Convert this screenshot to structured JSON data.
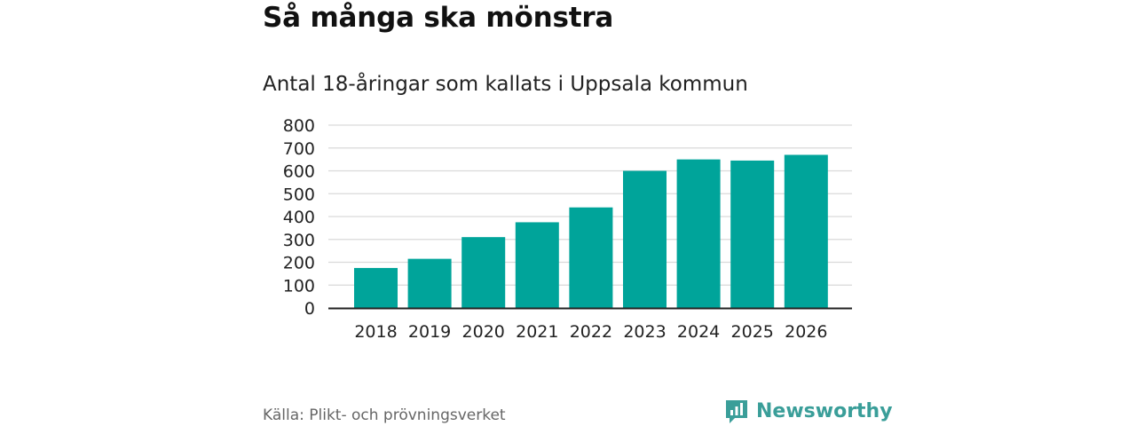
{
  "colors": {
    "bar": "#00a49a",
    "grid": "#d9d9d9",
    "axis": "#222222",
    "brand": "#3a9e99"
  },
  "chart_data": {
    "type": "bar",
    "title": "Så många ska mönstra",
    "subtitle": "Antal 18-åringar som kallats i Uppsala kommun",
    "xlabel": "",
    "ylabel": "",
    "categories": [
      "2018",
      "2019",
      "2020",
      "2021",
      "2022",
      "2023",
      "2024",
      "2025",
      "2026"
    ],
    "values": [
      175,
      215,
      310,
      375,
      440,
      600,
      650,
      645,
      670
    ],
    "ylim": [
      0,
      800
    ],
    "yticks": [
      0,
      100,
      200,
      300,
      400,
      500,
      600,
      700,
      800
    ],
    "grid": true,
    "legend": "none"
  },
  "footer": {
    "source": "Källa: Plikt- och prövningsverket",
    "brand_name": "Newsworthy",
    "brand_icon": "newsworthy-logo-icon"
  }
}
